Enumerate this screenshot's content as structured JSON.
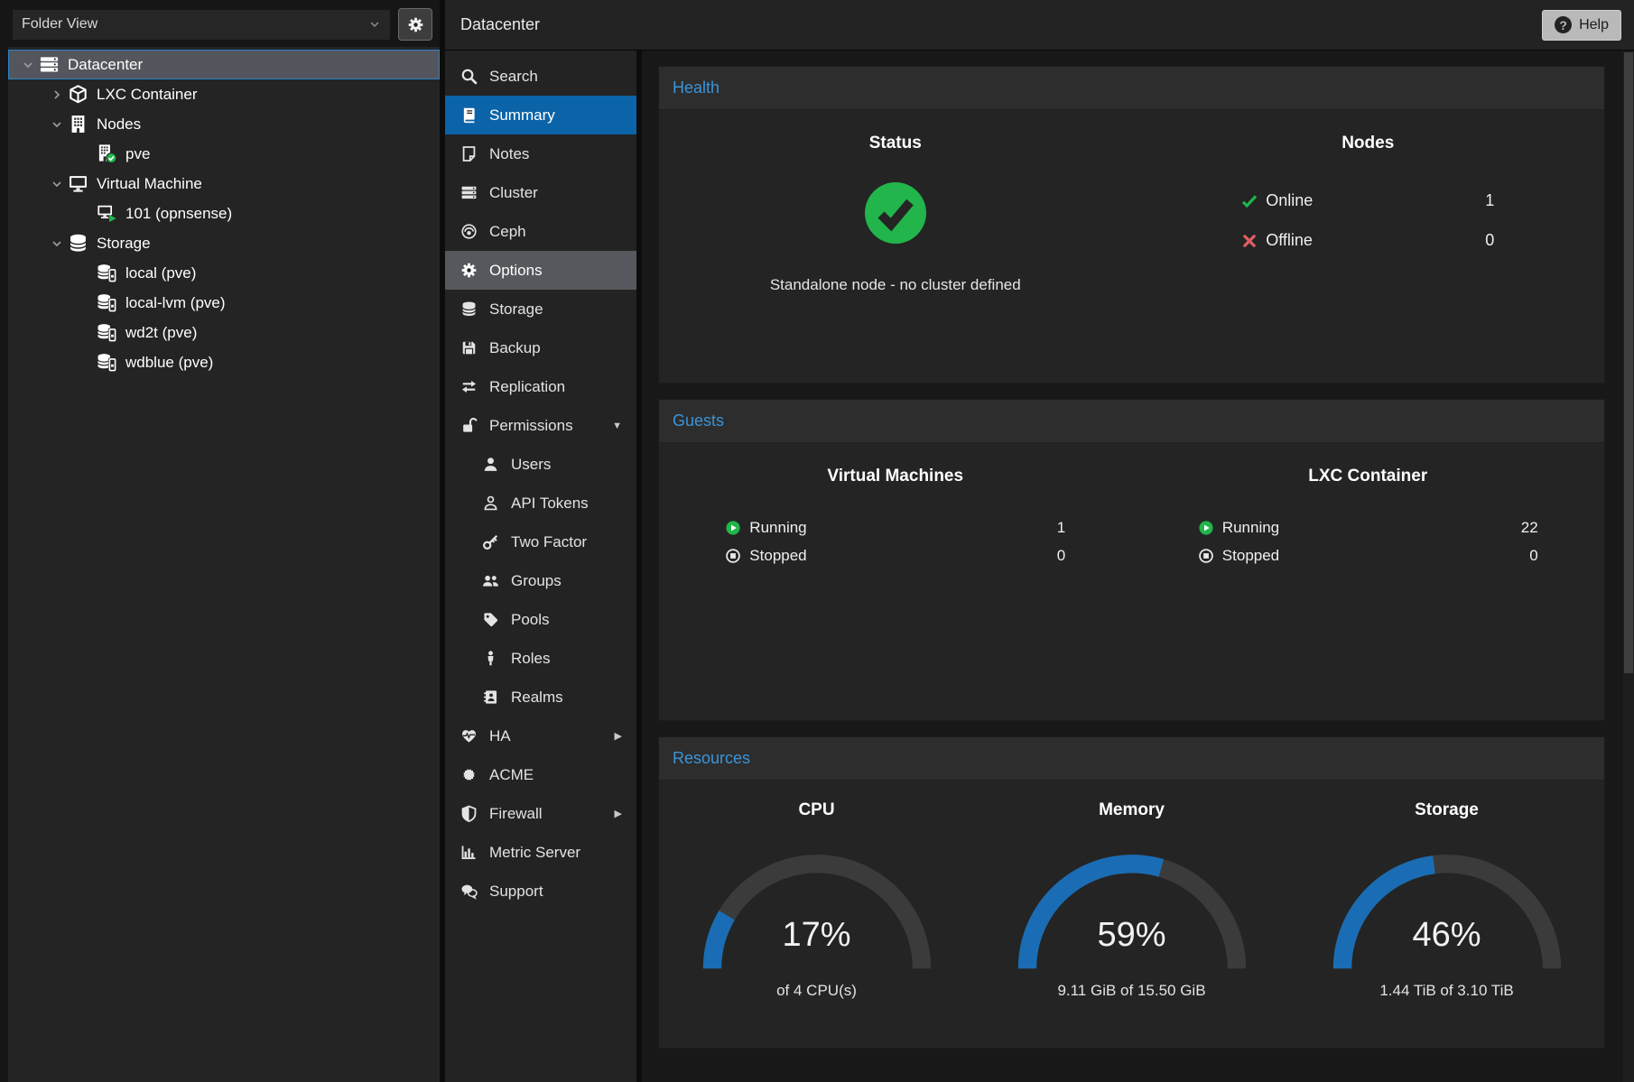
{
  "app": {
    "title": "Datacenter",
    "help_button": {
      "label": "Help",
      "icon": "question-circle-icon"
    }
  },
  "left_panel": {
    "view_selector": {
      "value": "Folder View",
      "icon": "chevron-down-icon"
    },
    "gear_button": {
      "icon": "gear-icon"
    },
    "tree": [
      {
        "label": "Datacenter",
        "icon": "server-stack-icon",
        "level": 0,
        "caret": "down",
        "selected": true
      },
      {
        "label": "LXC Container",
        "icon": "cube-icon",
        "level": 1,
        "caret": "right"
      },
      {
        "label": "Nodes",
        "icon": "building-icon",
        "level": 1,
        "caret": "down"
      },
      {
        "label": "pve",
        "icon": "node-online-icon",
        "level": 2,
        "caret": "none"
      },
      {
        "label": "Virtual Machine",
        "icon": "monitor-icon",
        "level": 1,
        "caret": "down"
      },
      {
        "label": "101 (opnsense)",
        "icon": "vm-running-icon",
        "level": 2,
        "caret": "none"
      },
      {
        "label": "Storage",
        "icon": "database-icon",
        "level": 1,
        "caret": "down"
      },
      {
        "label": "local (pve)",
        "icon": "storage-drive-icon",
        "level": 2,
        "caret": "none"
      },
      {
        "label": "local-lvm (pve)",
        "icon": "storage-drive-icon",
        "level": 2,
        "caret": "none"
      },
      {
        "label": "wd2t (pve)",
        "icon": "storage-drive-icon",
        "level": 2,
        "caret": "none"
      },
      {
        "label": "wdblue (pve)",
        "icon": "storage-drive-icon",
        "level": 2,
        "caret": "none"
      }
    ]
  },
  "nav": {
    "items": [
      {
        "label": "Search",
        "icon": "search-icon"
      },
      {
        "label": "Summary",
        "icon": "book-icon",
        "state": "selected"
      },
      {
        "label": "Notes",
        "icon": "note-icon"
      },
      {
        "label": "Cluster",
        "icon": "server-stack-icon"
      },
      {
        "label": "Ceph",
        "icon": "ceph-icon"
      },
      {
        "label": "Options",
        "icon": "gear-icon",
        "state": "hovered"
      },
      {
        "label": "Storage",
        "icon": "database-icon"
      },
      {
        "label": "Backup",
        "icon": "floppy-icon"
      },
      {
        "label": "Replication",
        "icon": "sync-icon"
      },
      {
        "label": "Permissions",
        "icon": "unlock-icon",
        "expandable": "expanded"
      },
      {
        "label": "Users",
        "icon": "user-icon",
        "indent": 1
      },
      {
        "label": "API Tokens",
        "icon": "user-outline-icon",
        "indent": 1
      },
      {
        "label": "Two Factor",
        "icon": "key-icon",
        "indent": 1
      },
      {
        "label": "Groups",
        "icon": "users-icon",
        "indent": 1
      },
      {
        "label": "Pools",
        "icon": "tag-icon",
        "indent": 1
      },
      {
        "label": "Roles",
        "icon": "person-icon",
        "indent": 1
      },
      {
        "label": "Realms",
        "icon": "address-book-icon",
        "indent": 1
      },
      {
        "label": "HA",
        "icon": "heartbeat-icon",
        "expandable": "collapsed"
      },
      {
        "label": "ACME",
        "icon": "seal-icon"
      },
      {
        "label": "Firewall",
        "icon": "shield-icon",
        "expandable": "collapsed"
      },
      {
        "label": "Metric Server",
        "icon": "chart-bar-icon"
      },
      {
        "label": "Support",
        "icon": "comments-icon"
      }
    ]
  },
  "health": {
    "title": "Health",
    "status": {
      "heading": "Status",
      "icon": "check-circle-icon",
      "message": "Standalone node - no cluster defined"
    },
    "nodes": {
      "heading": "Nodes",
      "rows": [
        {
          "icon": "check-icon",
          "label": "Online",
          "value": "1"
        },
        {
          "icon": "cross-icon",
          "label": "Offline",
          "value": "0"
        }
      ]
    }
  },
  "guests": {
    "title": "Guests",
    "columns": [
      {
        "heading": "Virtual Machines",
        "rows": [
          {
            "icon": "play-circle-icon",
            "label": "Running",
            "value": "1"
          },
          {
            "icon": "stop-circle-icon",
            "label": "Stopped",
            "value": "0"
          }
        ]
      },
      {
        "heading": "LXC Container",
        "rows": [
          {
            "icon": "play-circle-icon",
            "label": "Running",
            "value": "22"
          },
          {
            "icon": "stop-circle-icon",
            "label": "Stopped",
            "value": "0"
          }
        ]
      }
    ]
  },
  "resources": {
    "title": "Resources"
  },
  "chart_data": [
    {
      "type": "gauge",
      "title": "CPU",
      "value_pct": 17,
      "label": "17%",
      "sublabel": "of 4 CPU(s)"
    },
    {
      "type": "gauge",
      "title": "Memory",
      "value_pct": 59,
      "label": "59%",
      "sublabel": "9.11 GiB of 15.50 GiB"
    },
    {
      "type": "gauge",
      "title": "Storage",
      "value_pct": 46,
      "label": "46%",
      "sublabel": "1.44 TiB of 3.10 TiB"
    }
  ],
  "colors": {
    "accent_blue": "#3a95da",
    "selection_blue": "#0b64a8",
    "gauge_blue": "#1a6db4",
    "gauge_track": "#3b3b3b",
    "ok_green": "#21b54b",
    "error_red": "#e35d64"
  }
}
